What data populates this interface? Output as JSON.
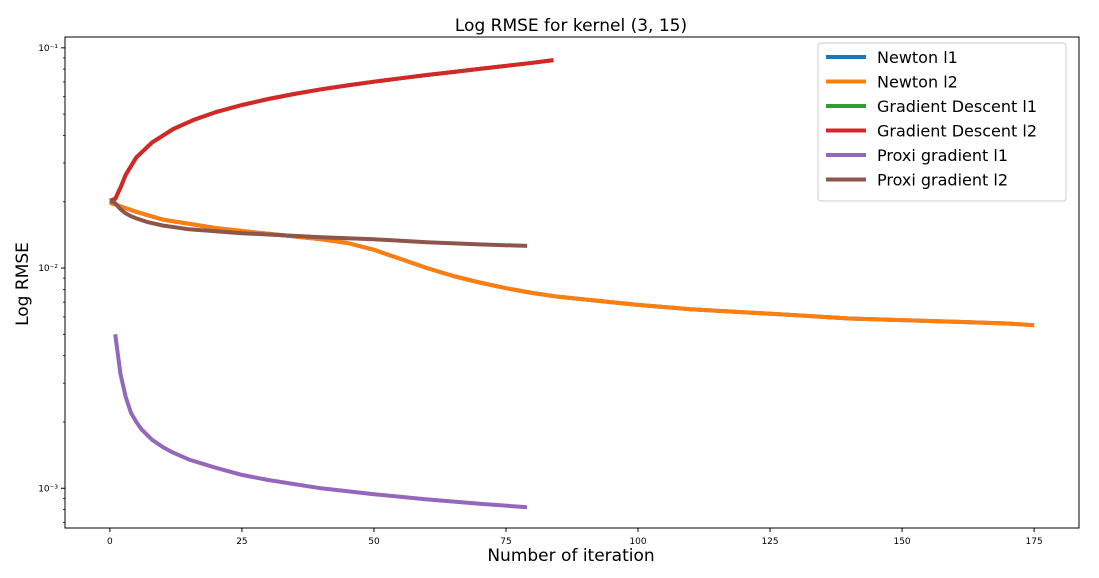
{
  "chart_data": {
    "type": "line",
    "title": "Log RMSE for kernel (3, 15)",
    "xlabel": "Number of iteration",
    "ylabel": "Log RMSE",
    "yscale": "log",
    "xlim": [
      -8.5,
      183.5
    ],
    "ylim": [
      0.00066,
      0.112
    ],
    "x_ticks": [
      0,
      25,
      50,
      75,
      100,
      125,
      150,
      175
    ],
    "x_tick_labels": [
      "0",
      "25",
      "50",
      "75",
      "100",
      "125",
      "150",
      "175"
    ],
    "y_ticks": [
      0.001,
      0.01,
      0.1
    ],
    "y_tick_labels": [
      "10⁻³",
      "10⁻²",
      "10⁻¹"
    ],
    "legend_position": "top-right",
    "series": [
      {
        "name": "Newton l1",
        "color": "#1f77b4",
        "x": [
          0,
          5,
          10,
          20,
          30,
          40,
          45,
          50,
          55,
          60,
          65,
          70,
          75,
          80,
          85,
          90,
          100,
          110,
          120,
          130,
          140,
          150,
          160,
          170,
          175
        ],
        "y": [
          0.0198,
          0.018,
          0.0166,
          0.0152,
          0.0143,
          0.0135,
          0.013,
          0.0121,
          0.011,
          0.01,
          0.0092,
          0.0086,
          0.0081,
          0.0077,
          0.0074,
          0.0072,
          0.0068,
          0.0065,
          0.0063,
          0.0061,
          0.0059,
          0.0058,
          0.0057,
          0.0056,
          0.0055
        ]
      },
      {
        "name": "Newton l2",
        "color": "#ff7f0e",
        "x": [
          0,
          5,
          10,
          20,
          30,
          40,
          45,
          50,
          55,
          60,
          65,
          70,
          75,
          80,
          85,
          90,
          100,
          110,
          120,
          130,
          140,
          150,
          160,
          170,
          175
        ],
        "y": [
          0.0198,
          0.018,
          0.0166,
          0.0152,
          0.0143,
          0.0135,
          0.013,
          0.0121,
          0.011,
          0.01,
          0.0092,
          0.0086,
          0.0081,
          0.0077,
          0.0074,
          0.0072,
          0.0068,
          0.0065,
          0.0063,
          0.0061,
          0.0059,
          0.0058,
          0.0057,
          0.0056,
          0.0055
        ]
      },
      {
        "name": "Gradient Descent l1",
        "color": "#2ca02c",
        "x": [
          0,
          1,
          2,
          3,
          5,
          8,
          12,
          16,
          20,
          25,
          30,
          35,
          40,
          45,
          50,
          55,
          60,
          65,
          70,
          75,
          80,
          84
        ],
        "y": [
          0.0202,
          0.0206,
          0.0232,
          0.0265,
          0.0318,
          0.0372,
          0.0428,
          0.0472,
          0.051,
          0.055,
          0.0586,
          0.0618,
          0.0648,
          0.0675,
          0.0702,
          0.0727,
          0.0753,
          0.0777,
          0.0802,
          0.0828,
          0.0855,
          0.088
        ]
      },
      {
        "name": "Gradient Descent l2",
        "color": "#d62728",
        "x": [
          0,
          1,
          2,
          3,
          5,
          8,
          12,
          16,
          20,
          25,
          30,
          35,
          40,
          45,
          50,
          55,
          60,
          65,
          70,
          75,
          80,
          84
        ],
        "y": [
          0.0202,
          0.0206,
          0.0232,
          0.0265,
          0.0318,
          0.0372,
          0.0428,
          0.0472,
          0.051,
          0.055,
          0.0586,
          0.0618,
          0.0648,
          0.0675,
          0.0702,
          0.0727,
          0.0753,
          0.0777,
          0.0802,
          0.0828,
          0.0855,
          0.088
        ]
      },
      {
        "name": "Proxi gradient l1",
        "color": "#9467bd",
        "x": [
          1,
          2,
          3,
          4,
          5,
          6,
          8,
          10,
          12,
          15,
          20,
          25,
          30,
          40,
          50,
          60,
          70,
          79
        ],
        "y": [
          0.005,
          0.0033,
          0.0026,
          0.0022,
          0.002,
          0.00185,
          0.00166,
          0.00154,
          0.00145,
          0.00135,
          0.00124,
          0.00115,
          0.00109,
          0.001,
          0.00094,
          0.00089,
          0.00085,
          0.00082
        ]
      },
      {
        "name": "Proxi gradient l2",
        "color": "#8c564b",
        "x": [
          0,
          1,
          2,
          3,
          4,
          5,
          7,
          10,
          15,
          20,
          25,
          30,
          40,
          50,
          60,
          70,
          79
        ],
        "y": [
          0.0202,
          0.0197,
          0.0185,
          0.0177,
          0.0172,
          0.0168,
          0.0162,
          0.0156,
          0.015,
          0.0147,
          0.0144,
          0.0142,
          0.0138,
          0.0135,
          0.0131,
          0.0128,
          0.0126
        ]
      }
    ]
  }
}
